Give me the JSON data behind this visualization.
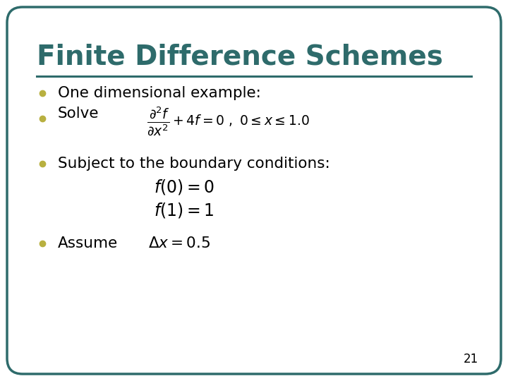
{
  "title": "Finite Difference Schemes",
  "title_color": "#2E6B6B",
  "title_fontsize": 28,
  "line_color": "#2E6B6B",
  "background_color": "#FFFFFF",
  "border_color": "#2E6B6B",
  "bullet_color": "#B8B040",
  "text_color": "#000000",
  "page_number": "21",
  "bullet1": "One dimensional example:",
  "bullet2": "Solve",
  "bullet3": "Subject to the boundary conditions:",
  "bullet4": "Assume",
  "eq_solve": "$\\dfrac{\\partial^2 f}{\\partial x^2}+4f=0\\ ,\\ 0 \\leq x \\leq 1.0$",
  "eq_bc1": "$f(0)=0$",
  "eq_bc2": "$f(1)=1$",
  "eq_assume": "$\\Delta x = 0.5$"
}
